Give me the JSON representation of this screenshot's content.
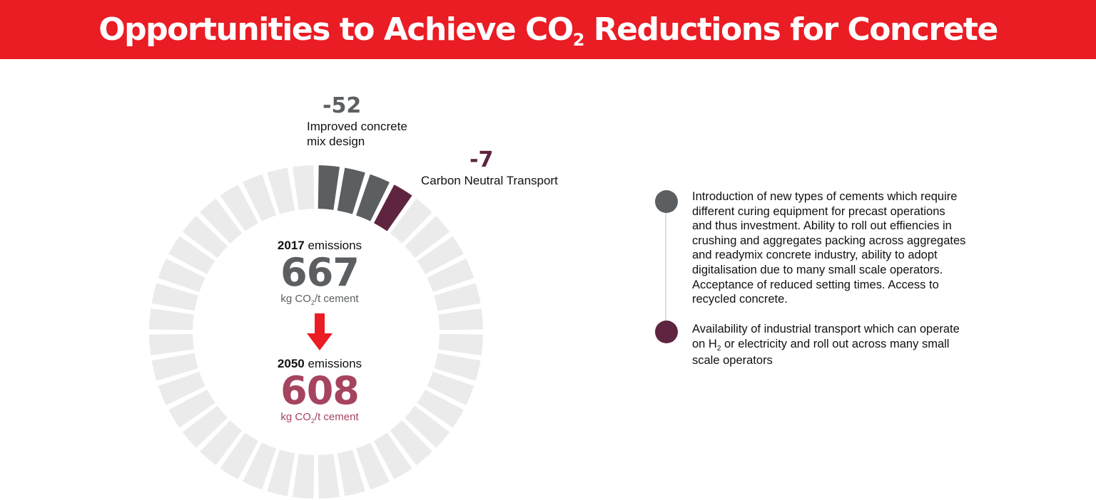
{
  "header": {
    "title_pre": "Opportunities to Achieve CO",
    "title_sub": "2",
    "title_post": " Reductions for Concrete"
  },
  "colors": {
    "header_red": "#ea1c24",
    "segment_bg": "#ebebeb",
    "mix_design": "#5b5f61",
    "transport": "#5e2440",
    "emission_2017": "#5b5f61",
    "emission_2050": "#a6435e",
    "arrow": "#ea1c24",
    "dot_1": "#5b5f61",
    "dot_2": "#5e2440"
  },
  "chart_data": {
    "type": "radial-waterfall",
    "total_segments": 40,
    "levers": [
      {
        "value": -52,
        "value_text": "-52",
        "label_line1": "Improved concrete",
        "label_line2": "mix design",
        "segments": 3,
        "color": "#5b5f61"
      },
      {
        "value": -7,
        "value_text": "-7",
        "label_line1": "Carbon Neutral Transport",
        "label_line2": "",
        "segments": 1,
        "color": "#5e2440"
      }
    ],
    "start": {
      "year": "2017",
      "suffix": " emissions",
      "value": 667,
      "value_text": "667",
      "unit_pre": "kg CO",
      "unit_sub": "2",
      "unit_post": "/t cement"
    },
    "end": {
      "year": "2050",
      "suffix": " emissions",
      "value": 608,
      "value_text": "608",
      "unit_pre": "kg CO",
      "unit_sub": "2",
      "unit_post": "/t cement"
    }
  },
  "notes": [
    {
      "text": "Introduction of new types of cements which require different curing equipment for precast operations and thus investment. Ability to roll out effiencies in crushing and aggregates packing across aggregates and readymix concrete industry, ability to adopt digitalisation due to many small scale operators. Acceptance of reduced setting times. Access to recycled concrete."
    },
    {
      "text_pre": "Availability of industrial transport which can operate on H",
      "text_sub": "2",
      "text_post": " or electricity and roll out across many small scale operators"
    }
  ]
}
